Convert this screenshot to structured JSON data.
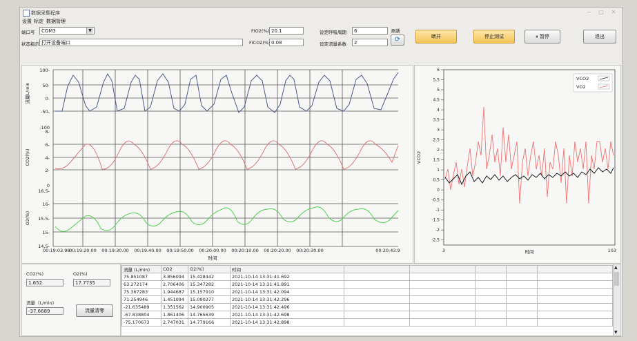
{
  "window": {
    "title": "数据采集程序"
  },
  "menu": [
    "设置",
    "标定",
    "数据管理"
  ],
  "controls": {
    "port_label": "端口号",
    "port_value": "COM3",
    "status_label": "状态指示",
    "status_value": "打开设备端口",
    "fio2_label": "FIO2(%)",
    "fio2_value": "20.1",
    "fico2_label": "FICO2(%)",
    "fico2_value": "0.08",
    "breath_label": "设定呼吸周期",
    "breath_value": "6",
    "flowcoef_label": "设定流量系数",
    "flowcoef_value": "2",
    "refresh_label": "刷新",
    "open_button": "断开",
    "stop_button": "停止测试",
    "pause_button": "暂停",
    "exit_button": "退出"
  },
  "left_chart": {
    "xlabel": "时间",
    "x_ticks": [
      "00:19:03.98",
      "00:19:20.00",
      "00:19:30.00",
      "00:19:40.00",
      "00:19:50.00",
      "00:20:00.00",
      "00:20:10.00",
      "00:20:20.00",
      "00:20:30.00",
      "00:20:43.9"
    ],
    "flow": {
      "ylabel": "流量L/min",
      "ticks": [
        "100-",
        "50-",
        "0-",
        "-50-",
        "-100"
      ]
    },
    "co2": {
      "ylabel": "CO2(%)",
      "ticks": [
        "8-",
        "6-",
        "4-",
        "2-",
        "0"
      ]
    },
    "o2": {
      "ylabel": "O2(%)",
      "ticks": [
        "16.5-",
        "16-",
        "15.5-",
        "15-",
        "14.5-"
      ]
    }
  },
  "right_chart": {
    "ylabel": "VCO2",
    "xlabel": "时间",
    "x_min": "3",
    "x_max": "103",
    "y_ticks": [
      "6",
      "5.5",
      "5",
      "4.5",
      "4",
      "3.5",
      "3",
      "2.5",
      "2",
      "1.5",
      "1",
      "0.5",
      "0",
      "-0.5",
      "-1",
      "-1.5",
      "-2",
      "-2.5"
    ],
    "legend": [
      "VCO2",
      "VO2"
    ]
  },
  "readouts": {
    "co2_label": "CO2(%)",
    "co2_value": "1.652",
    "o2_label": "O2(%)",
    "o2_value": "17.7735",
    "flow_label": "流量（L/min)",
    "flow_value": "-37.6689",
    "zero_button": "流量清零"
  },
  "table": {
    "headers": [
      "流量 (L/min)",
      "CO2",
      "O2(%)",
      "时间"
    ],
    "rows": [
      [
        "75.851087",
        "3.856094",
        "15.428442",
        "2021-10-14 13:31:41.692"
      ],
      [
        "63.272174",
        "2.706406",
        "15.347282",
        "2021-10-14 13:31:41.891"
      ],
      [
        "75.367283",
        "1.944687",
        "15.157910",
        "2021-10-14 13:31:42.094"
      ],
      [
        "71.254946",
        "1.451094",
        "15.090277",
        "2021-10-14 13:31:42.296"
      ],
      [
        "-21.635489",
        "1.351562",
        "14.900905",
        "2021-10-14 13:31:42.496"
      ],
      [
        "-67.838804",
        "1.861406",
        "14.765639",
        "2021-10-14 13:31:42.698"
      ],
      [
        "-75.170673",
        "2.747031",
        "14.779166",
        "2021-10-14 13:31:42.898"
      ]
    ]
  },
  "colors": {
    "flow": "#4a5a8c",
    "co2": "#d97a7a",
    "o2": "#4fd04f",
    "vco2": "#1a1a1a",
    "vo2": "#f07070",
    "accent": "#f4c45a"
  }
}
